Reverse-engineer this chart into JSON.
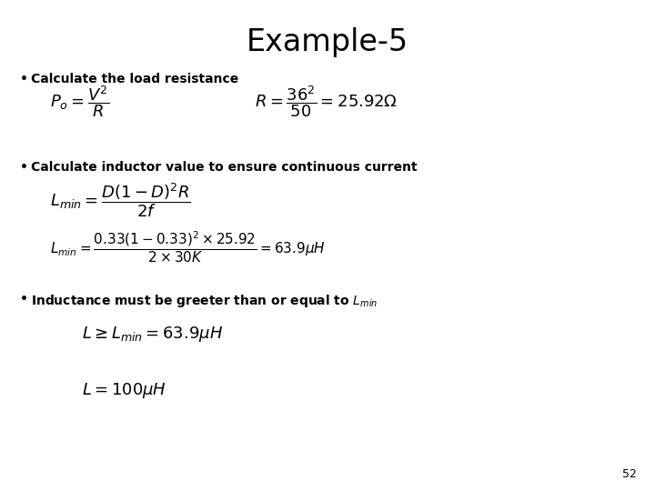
{
  "title": "Example-5",
  "title_fontsize": 24,
  "bg_color": "#ffffff",
  "text_color": "#000000",
  "bullet1": "Calculate the load resistance",
  "bullet2": "Calculate inductor value to ensure continuous current",
  "bullet3": "Inductance must be greeter than or equal to $L_{min}$",
  "page_number": "52",
  "formula1a": "$P_o = \\dfrac{V^2}{R}$",
  "formula1b": "$R = \\dfrac{36^2}{50} = 25.92\\Omega$",
  "formula2a": "$L_{min} = \\dfrac{D(1-D)^2R}{2f}$",
  "formula2b": "$L_{min} = \\dfrac{0.33(1-0.33)^2 \\times 25.92}{2 \\times 30K} = 63.9\\mu H$",
  "formula3a": "$L \\geq L_{min} = 63.9\\mu H$",
  "formula3b": "$L = 100\\mu H$",
  "bullet_fontsize": 10,
  "formula_fontsize": 13,
  "formula2b_fontsize": 11,
  "formula3_fontsize": 13,
  "page_fontsize": 9
}
